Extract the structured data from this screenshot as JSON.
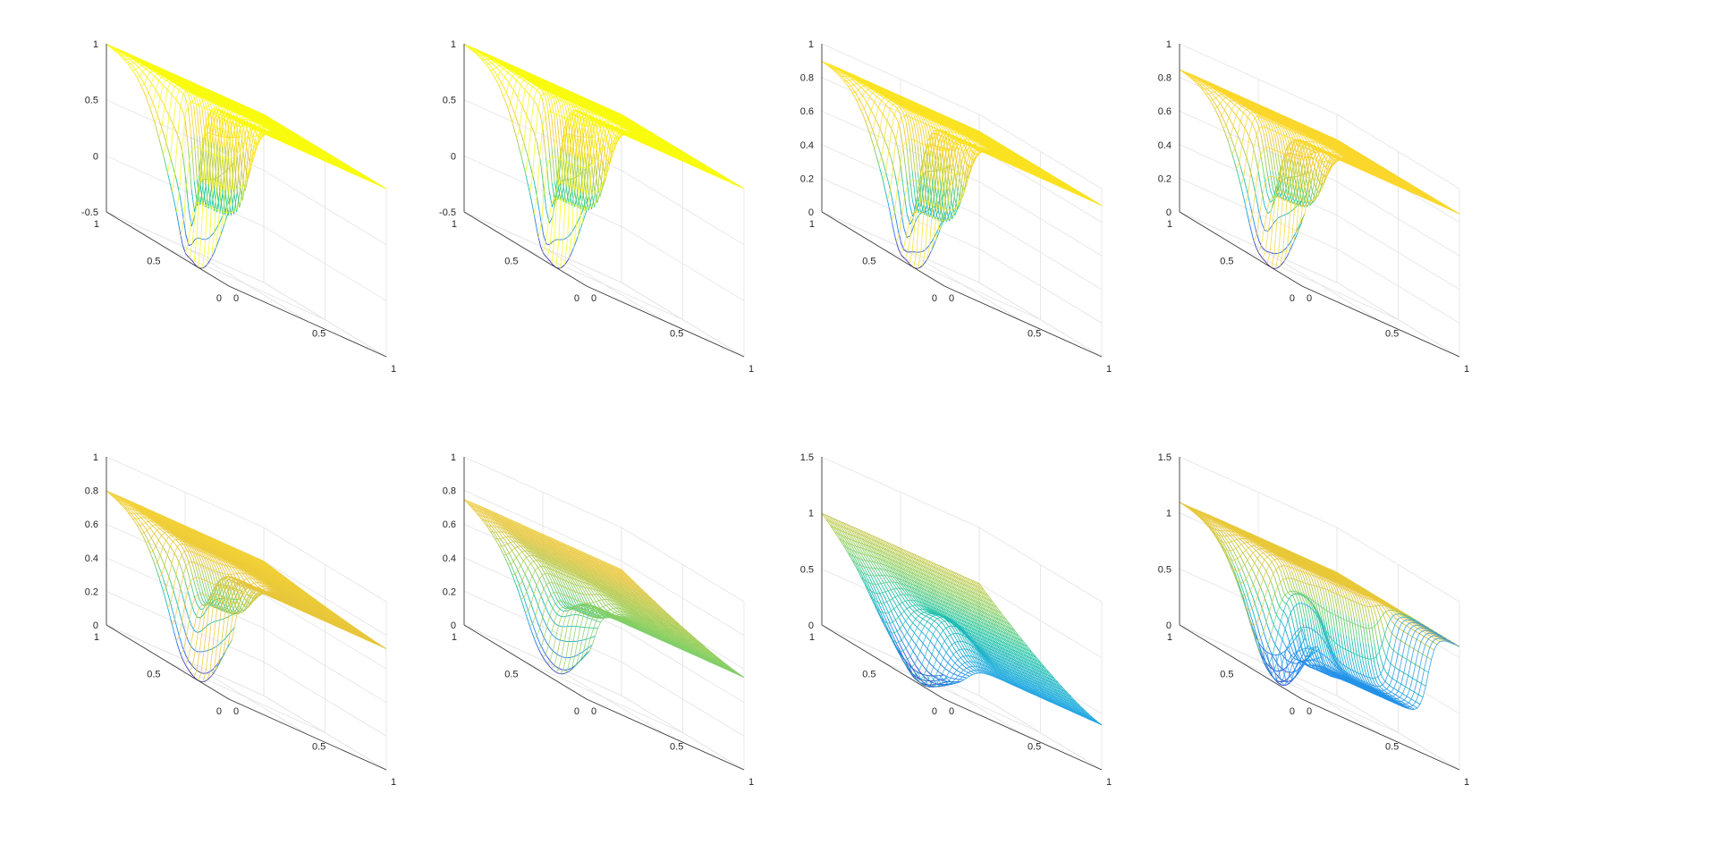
{
  "chart_data": [
    {
      "type": "surface",
      "panel": "row1-col1",
      "zlim": [
        -0.5,
        1
      ],
      "zticks": [
        "-0.5",
        "0",
        "0.5",
        "1"
      ],
      "xticks": [
        "0",
        "0.5",
        "1"
      ],
      "yticks": [
        "0",
        "0.5",
        "1"
      ],
      "plateau": 1.0,
      "bg_z": 1.0,
      "trench": {
        "depth": -0.5,
        "center": 0.0,
        "width": 0.04
      },
      "wall": {
        "y": 0.35,
        "bottom": 0.0,
        "width": 0.05
      },
      "grid": true
    },
    {
      "type": "surface",
      "panel": "row1-col2",
      "zlim": [
        -0.5,
        1
      ],
      "zticks": [
        "-0.5",
        "0",
        "0.5",
        "1"
      ],
      "xticks": [
        "0",
        "0.5",
        "1"
      ],
      "yticks": [
        "0",
        "0.5",
        "1"
      ],
      "plateau": 1.0,
      "bg_z": 1.0,
      "trench": {
        "depth": -0.5,
        "center": 0.0,
        "width": 0.04
      },
      "wall": {
        "y": 0.35,
        "bottom": 0.05,
        "width": 0.06
      },
      "grid": true
    },
    {
      "type": "surface",
      "panel": "row1-col3",
      "zlim": [
        0,
        1
      ],
      "zticks": [
        "0",
        "0.2",
        "0.4",
        "0.6",
        "0.8",
        "1"
      ],
      "xticks": [
        "0",
        "0.5",
        "1"
      ],
      "yticks": [
        "0",
        "0.5",
        "1"
      ],
      "plateau": 0.9,
      "bg_z": 0.9,
      "trench": {
        "depth": 0.0,
        "center": 0.0,
        "width": 0.05
      },
      "wall": {
        "y": 0.35,
        "bottom": 0.3,
        "width": 0.07
      },
      "grid": true
    },
    {
      "type": "surface",
      "panel": "row1-col4",
      "zlim": [
        0,
        1
      ],
      "zticks": [
        "0",
        "0.2",
        "0.4",
        "0.6",
        "0.8",
        "1"
      ],
      "xticks": [
        "0",
        "0.5",
        "1"
      ],
      "yticks": [
        "0",
        "0.5",
        "1"
      ],
      "plateau": 0.85,
      "bg_z": 0.85,
      "trench": {
        "depth": 0.0,
        "center": 0.0,
        "width": 0.05
      },
      "wall": {
        "y": 0.35,
        "bottom": 0.4,
        "width": 0.08
      },
      "grid": true
    },
    {
      "type": "surface",
      "panel": "row2-col1",
      "zlim": [
        0,
        1
      ],
      "zticks": [
        "0",
        "0.2",
        "0.4",
        "0.6",
        "0.8",
        "1"
      ],
      "xticks": [
        "0",
        "0.5",
        "1"
      ],
      "yticks": [
        "0",
        "0.5",
        "1"
      ],
      "plateau": 0.8,
      "bg_z": 0.72,
      "trench": {
        "depth": 0.0,
        "center": 0.0,
        "width": 0.06
      },
      "wall": {
        "y": 0.35,
        "bottom": 0.45,
        "width": 0.1
      },
      "grid": true
    },
    {
      "type": "surface",
      "panel": "row2-col2",
      "zlim": [
        0,
        1
      ],
      "zticks": [
        "0",
        "0.2",
        "0.4",
        "0.6",
        "0.8",
        "1"
      ],
      "xticks": [
        "0",
        "0.5",
        "1"
      ],
      "yticks": [
        "0",
        "0.5",
        "1"
      ],
      "plateau": 0.75,
      "bg_z": 0.55,
      "trench": {
        "depth": 0.05,
        "center": 0.0,
        "width": 0.07
      },
      "wall": {
        "y": 0.35,
        "bottom": 0.45,
        "width": 0.12
      },
      "grid": true
    },
    {
      "type": "surface",
      "panel": "row2-col3",
      "zlim": [
        0,
        1.5
      ],
      "zticks": [
        "0",
        "0.5",
        "1",
        "1.5"
      ],
      "xticks": [
        "0",
        "0.5",
        "1"
      ],
      "yticks": [
        "0",
        "0.5",
        "1"
      ],
      "plateau": 1.0,
      "bg_z": 0.4,
      "trench": {
        "depth": 0.0,
        "center": 0.05,
        "width": 0.12
      },
      "wall": {
        "y": 0.35,
        "bottom": 0.7,
        "width": 0.15
      },
      "grid": true
    },
    {
      "type": "surface",
      "panel": "row2-col4",
      "zlim": [
        0,
        1.5
      ],
      "zticks": [
        "0",
        "0.5",
        "1",
        "1.5"
      ],
      "xticks": [
        "0",
        "0.5",
        "1"
      ],
      "yticks": [
        "0",
        "0.5",
        "1"
      ],
      "plateau": 1.1,
      "bg_z": 1.1,
      "trench": {
        "depth": 0.0,
        "center": 0.05,
        "width": 0.1
      },
      "wall": {
        "y": 0.35,
        "bottom": 0.9,
        "width": 0.08
      },
      "valley": {
        "x_from": 0.12,
        "x_to": 0.8,
        "depth": 0.2
      },
      "grid": true
    }
  ],
  "colormap": [
    "#3e26a8",
    "#2d6ef5",
    "#1caadf",
    "#21c5a5",
    "#8fcf5e",
    "#e6c53a",
    "#fbd82b",
    "#f9fb0e"
  ]
}
